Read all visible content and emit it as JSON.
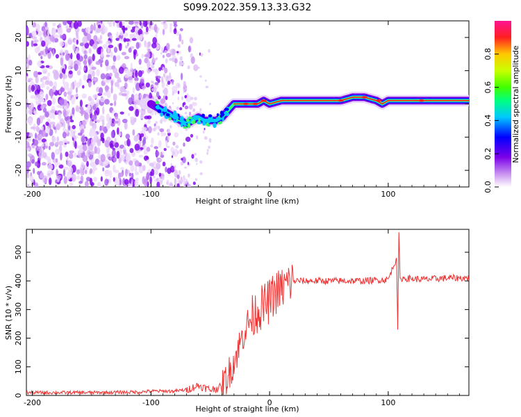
{
  "title": "S099.2022.359.13.33.G32",
  "chart_data": [
    {
      "type": "heatmap",
      "title": "S099.2022.359.13.33.G32",
      "xlabel": "Height of straight line (km)",
      "ylabel": "Frequency (Hz)",
      "xlim": [
        -205,
        168
      ],
      "ylim": [
        -25,
        25
      ],
      "xticks": [
        -200,
        -100,
        0,
        100
      ],
      "yticks": [
        -20,
        -10,
        0,
        10,
        20
      ],
      "colorbar": {
        "label": "Normalized spectral amplitude",
        "range": [
          0,
          1
        ],
        "ticks": [
          0.0,
          0.2,
          0.4,
          0.6,
          0.8
        ],
        "colors": [
          "#ffffff",
          "#c890f0",
          "#7a00e8",
          "#0000ff",
          "#00c8ff",
          "#00ff80",
          "#40ff00",
          "#c8ff00",
          "#ffc800",
          "#ff2020",
          "#ff1493"
        ]
      },
      "frequency_track": {
        "x": [
          -100,
          -90,
          -80,
          -70,
          -65,
          -60,
          -55,
          -50,
          -45,
          -40,
          -35,
          -30,
          -20,
          -10,
          -5,
          0,
          10,
          20,
          40,
          60,
          70,
          80,
          90,
          95,
          100,
          120,
          140,
          168
        ],
        "y": [
          0,
          -2,
          -4,
          -6,
          -5,
          -4,
          -5,
          -5,
          -5,
          -4,
          -2,
          0,
          0,
          0,
          1,
          0,
          1,
          1,
          1,
          1,
          2,
          2,
          1,
          0,
          1,
          1,
          1,
          1
        ]
      },
      "noise_region_xlim": [
        -205,
        -60
      ]
    },
    {
      "type": "line",
      "xlabel": "Height of straight line (km)",
      "ylabel": "SNR (10 * v/v)",
      "xlim": [
        -205,
        168
      ],
      "ylim": [
        0,
        580
      ],
      "xticks": [
        -200,
        -100,
        0,
        100
      ],
      "yticks": [
        0,
        100,
        200,
        300,
        400,
        500
      ],
      "series": [
        {
          "name": "SNR",
          "color": "#ee3333",
          "x": [
            -205,
            -150,
            -110,
            -100,
            -80,
            -70,
            -60,
            -50,
            -40,
            -35,
            -30,
            -25,
            -20,
            -15,
            -10,
            -5,
            0,
            5,
            10,
            15,
            20,
            25,
            30,
            40,
            60,
            80,
            100,
            107,
            108,
            109,
            110,
            130,
            150,
            168
          ],
          "y": [
            10,
            10,
            12,
            15,
            15,
            20,
            35,
            20,
            30,
            70,
            120,
            180,
            240,
            270,
            300,
            310,
            330,
            360,
            370,
            390,
            400,
            400,
            400,
            400,
            400,
            400,
            405,
            480,
            230,
            570,
            410,
            405,
            410,
            410
          ]
        }
      ]
    }
  ]
}
